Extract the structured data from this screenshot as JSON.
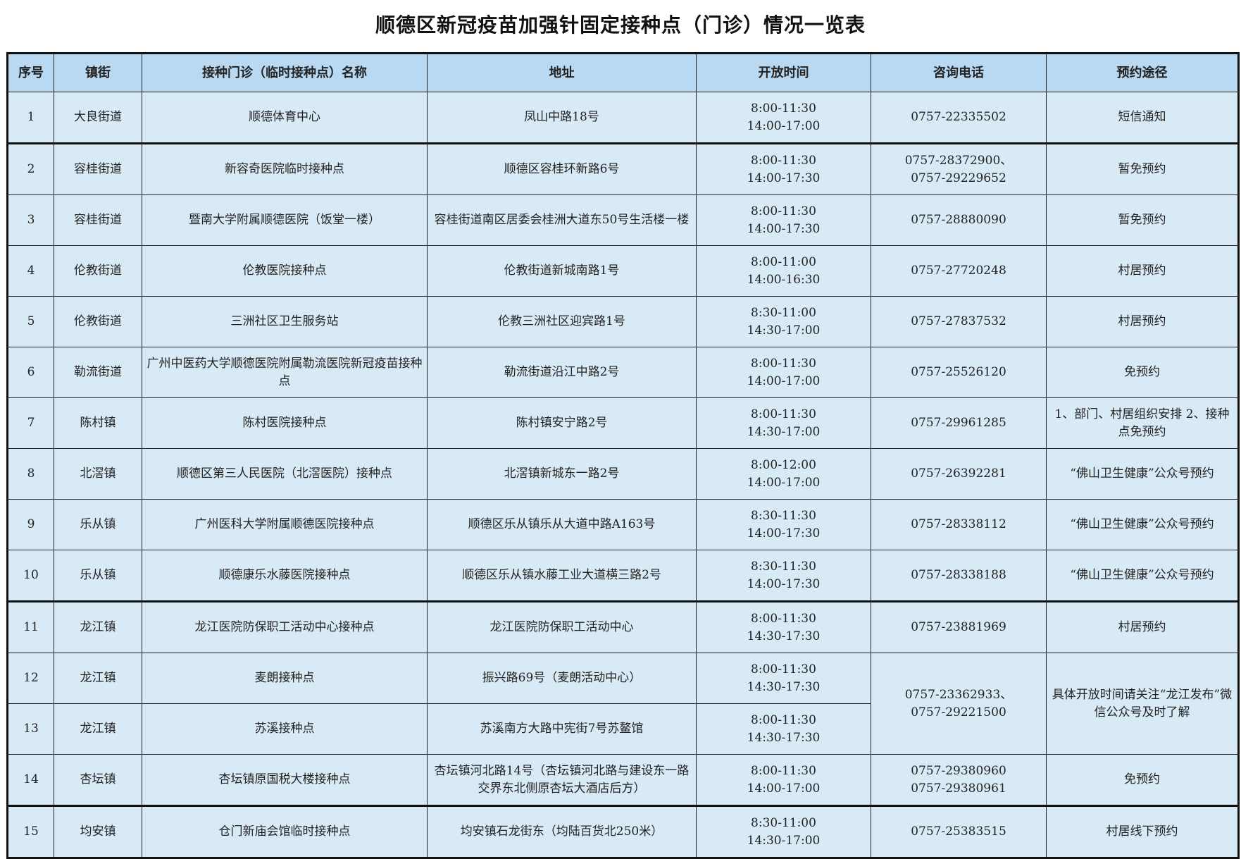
{
  "title": "顺德区新冠疫苗加强针固定接种点（门诊）情况一览表",
  "headers": [
    "序号",
    "镇街",
    "接种门诊（临时接种点）名称",
    "地址",
    "开放时间",
    "咨询电话",
    "预约途径"
  ],
  "rows": [
    {
      "no": "1",
      "town": "大良街道",
      "name": "顺德体育中心",
      "addr": "凤山中路18号",
      "time": [
        "8:00-11:30",
        "14:00-17:00"
      ],
      "phone": [
        "0757-22335502"
      ],
      "booking": "短信通知"
    },
    {
      "no": "2",
      "town": "容桂街道",
      "name": "新容奇医院临时接种点",
      "addr": "顺德区容桂环新路6号",
      "time": [
        "8:00-11:30",
        "14:00-17:30"
      ],
      "phone": [
        "0757-28372900、",
        "0757-29229652"
      ],
      "booking": "暂免预约"
    },
    {
      "no": "3",
      "town": "容桂街道",
      "name": "暨南大学附属顺德医院（饭堂一楼）",
      "addr": "容桂街道南区居委会桂洲大道东50号生活楼一楼",
      "time": [
        "8:00-11:30",
        "14:00-17:30"
      ],
      "phone": [
        "0757-28880090"
      ],
      "booking": "暂免预约"
    },
    {
      "no": "4",
      "town": "伦教街道",
      "name": "伦教医院接种点",
      "addr": "伦教街道新城南路1号",
      "time": [
        "8:00-11:00",
        "14:00-16:30"
      ],
      "phone": [
        "0757-27720248"
      ],
      "booking": "村居预约"
    },
    {
      "no": "5",
      "town": "伦教街道",
      "name": "三洲社区卫生服务站",
      "addr": "伦教三洲社区迎宾路1号",
      "time": [
        "8:30-11:00",
        "14:30-17:00"
      ],
      "phone": [
        "0757-27837532"
      ],
      "booking": "村居预约"
    },
    {
      "no": "6",
      "town": "勒流街道",
      "name": "广州中医药大学顺德医院附属勒流医院新冠疫苗接种点",
      "addr": "勒流街道沿江中路2号",
      "time": [
        "8:00-11:30",
        "14:00-17:00"
      ],
      "phone": [
        "0757-25526120"
      ],
      "booking": "免预约"
    },
    {
      "no": "7",
      "town": "陈村镇",
      "name": "陈村医院接种点",
      "addr": "陈村镇安宁路2号",
      "time": [
        "8:00-11:30",
        "14:30-17:00"
      ],
      "phone": [
        "0757-29961285"
      ],
      "booking": "1、部门、村居组织安排 2、接种点免预约"
    },
    {
      "no": "8",
      "town": "北滘镇",
      "name": "顺德区第三人民医院（北滘医院）接种点",
      "addr": "北滘镇新城东一路2号",
      "time": [
        "8:00-12:00",
        "14:00-17:00"
      ],
      "phone": [
        "0757-26392281"
      ],
      "booking": "“佛山卫生健康”公众号预约"
    },
    {
      "no": "9",
      "town": "乐从镇",
      "name": "广州医科大学附属顺德医院接种点",
      "addr": "顺德区乐从镇乐从大道中路A163号",
      "time": [
        "8:30-11:30",
        "14:00-17:30"
      ],
      "phone": [
        "0757-28338112"
      ],
      "booking": "“佛山卫生健康”公众号预约"
    },
    {
      "no": "10",
      "town": "乐从镇",
      "name": "顺德康乐水藤医院接种点",
      "addr": "顺德区乐从镇水藤工业大道横三路2号",
      "time": [
        "8:30-11:30",
        "14:00-17:30"
      ],
      "phone": [
        "0757-28338188"
      ],
      "booking": "“佛山卫生健康”公众号预约"
    },
    {
      "no": "11",
      "town": "龙江镇",
      "name": "龙江医院防保职工活动中心接种点",
      "addr": "龙江医院防保职工活动中心",
      "time": [
        "8:00-11:30",
        "14:30-17:30"
      ],
      "phone": [
        "0757-23881969"
      ],
      "booking": "村居预约"
    },
    {
      "no": "12",
      "town": "龙江镇",
      "name": "麦朗接种点",
      "addr": "振兴路69号（麦朗活动中心）",
      "time": [
        "8:00-11:30",
        "14:30-17:30"
      ],
      "phone": [
        "0757-23362933、",
        "0757-29221500"
      ],
      "booking": "具体开放时间请关注“龙江发布”微信公众号及时了解"
    },
    {
      "no": "13",
      "town": "龙江镇",
      "name": "苏溪接种点",
      "addr": "苏溪南方大路中宪街7号苏鳌馆",
      "time": [
        "8:00-11:30",
        "14:30-17:30"
      ]
    },
    {
      "no": "14",
      "town": "杏坛镇",
      "name": "杏坛镇原国税大楼接种点",
      "addr": "杏坛镇河北路14号（杏坛镇河北路与建设东一路交界东北侧原杏坛大酒店后方）",
      "time": [
        "8:00-11:30",
        "14:00-17:00"
      ],
      "phone": [
        "0757-29380960",
        "0757-29380961"
      ],
      "booking": "免预约"
    },
    {
      "no": "15",
      "town": "均安镇",
      "name": "仓门新庙会馆临时接种点",
      "addr": "均安镇石龙街东（均陆百货北250米）",
      "time": [
        "8:30-11:00",
        "14:30-17:00"
      ],
      "phone": [
        "0757-25383515"
      ],
      "booking": "村居线下预约"
    }
  ]
}
